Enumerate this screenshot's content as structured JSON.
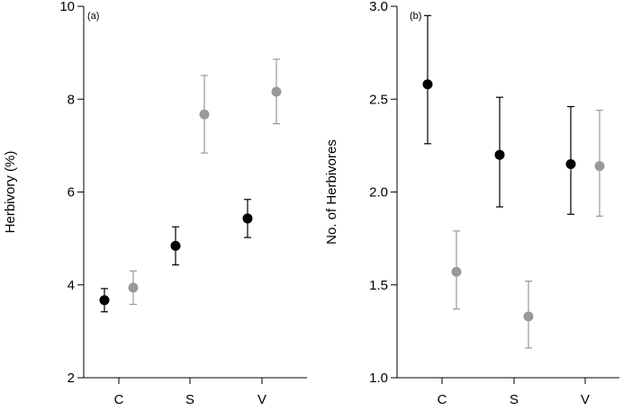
{
  "chart_data": [
    {
      "type": "scatter",
      "panel_label": "(a)",
      "ylabel": "Herbivory (%)",
      "xlabel": "",
      "categories": [
        "C",
        "S",
        "V"
      ],
      "ylim": [
        2,
        10
      ],
      "yticks": [
        2,
        4,
        6,
        8,
        10
      ],
      "grid": false,
      "legend": "none",
      "error_bars": true,
      "series": [
        {
          "color": "#000000",
          "values": [
            3.67,
            4.84,
            5.43
          ],
          "err_low": [
            3.42,
            4.43,
            5.02
          ],
          "err_high": [
            3.92,
            5.25,
            5.84
          ]
        },
        {
          "color": "#999999",
          "values": [
            3.94,
            7.67,
            8.16
          ],
          "err_low": [
            3.58,
            6.84,
            7.47
          ],
          "err_high": [
            4.3,
            8.51,
            8.86
          ]
        }
      ]
    },
    {
      "type": "scatter",
      "panel_label": "(b)",
      "ylabel": "No. of Herbivores",
      "xlabel": "",
      "categories": [
        "C",
        "S",
        "V"
      ],
      "ylim": [
        1.0,
        3.0
      ],
      "yticks": [
        "1.0",
        "1.5",
        "2.0",
        "2.5",
        "3.0"
      ],
      "grid": false,
      "legend": "none",
      "error_bars": true,
      "series": [
        {
          "color": "#000000",
          "values": [
            2.58,
            2.2,
            2.15
          ],
          "err_low": [
            2.26,
            1.92,
            1.88
          ],
          "err_high": [
            2.95,
            2.51,
            2.46
          ]
        },
        {
          "color": "#999999",
          "values": [
            1.57,
            1.33,
            2.14
          ],
          "err_low": [
            1.37,
            1.16,
            1.87
          ],
          "err_high": [
            1.79,
            1.52,
            2.44
          ]
        }
      ]
    }
  ]
}
